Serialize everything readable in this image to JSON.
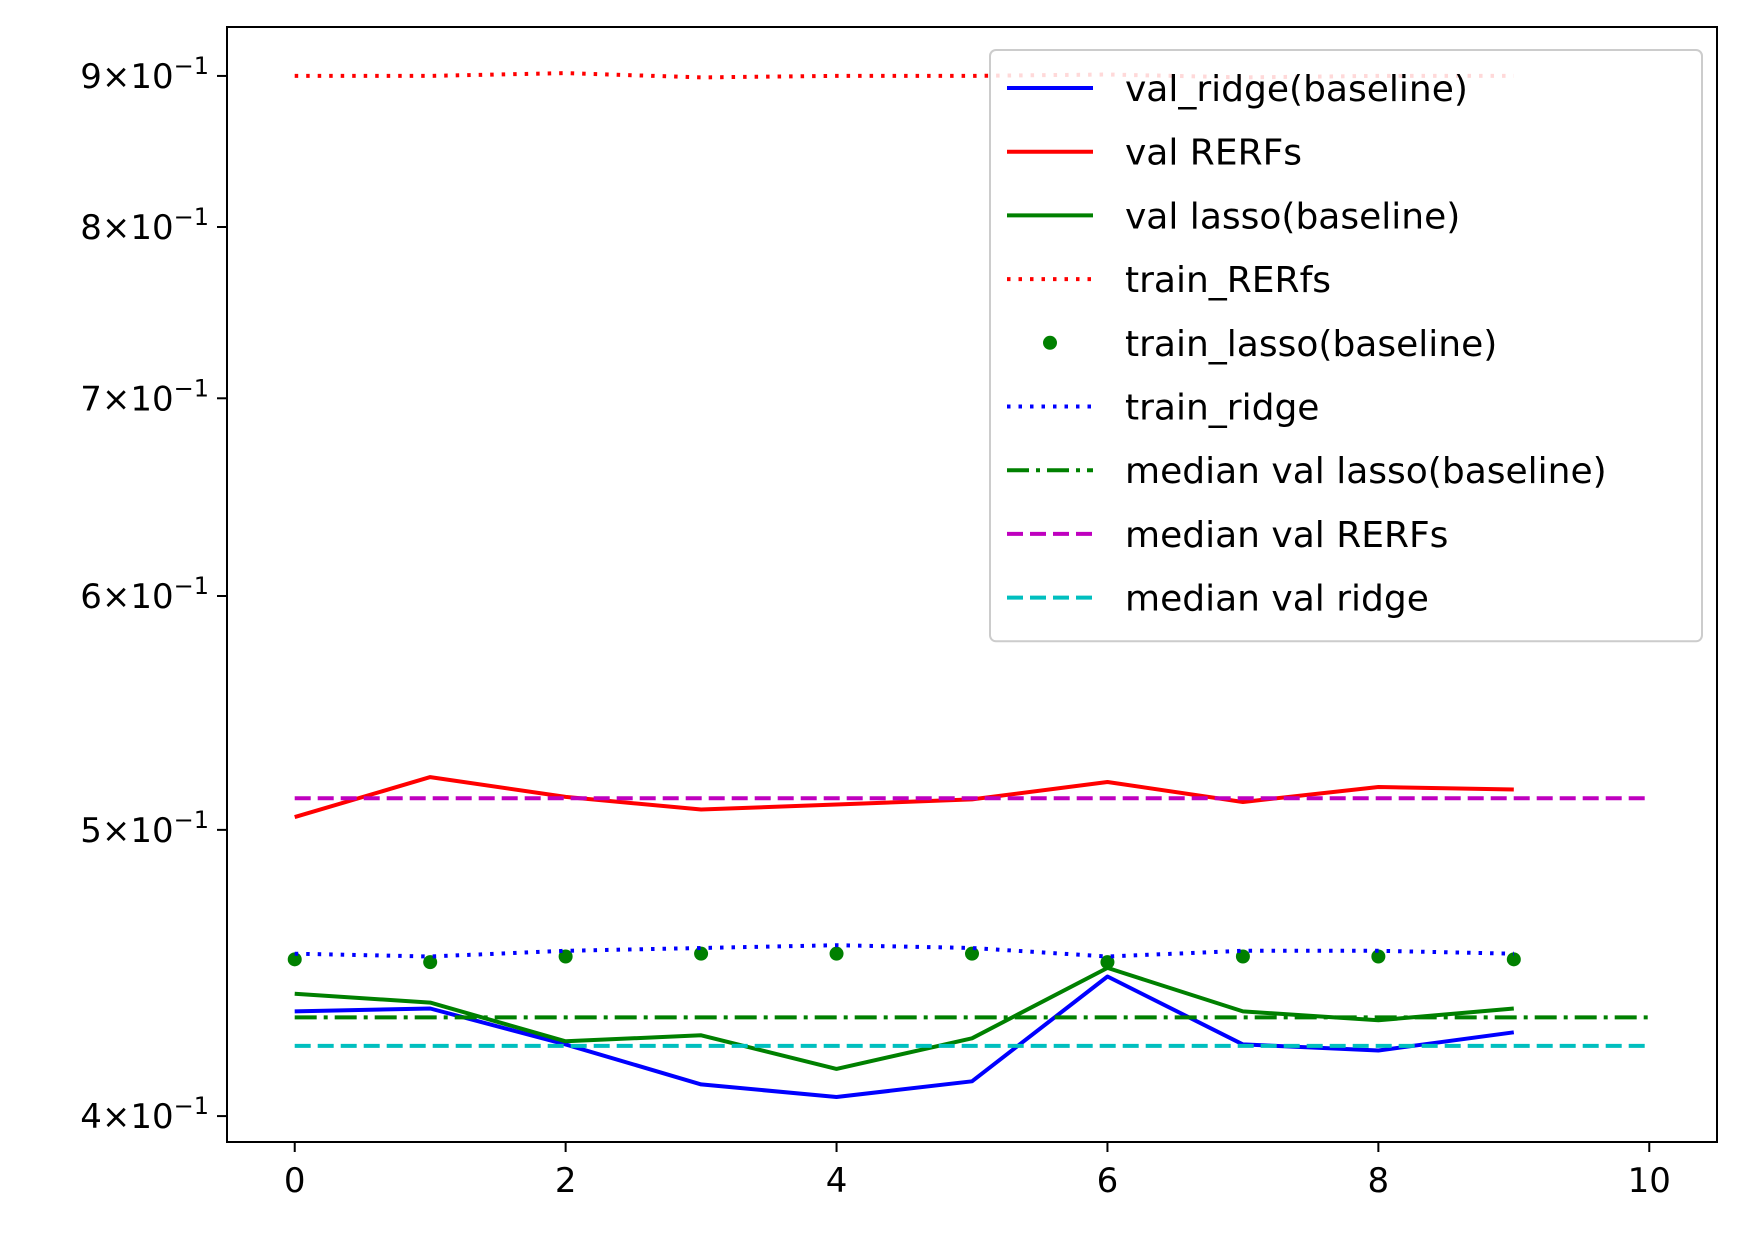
{
  "chart_data": {
    "type": "line",
    "title": "",
    "xlabel": "",
    "ylabel": "",
    "xlim": [
      -0.5,
      10.5
    ],
    "ylim": [
      0.392,
      0.935
    ],
    "yscale": "log",
    "grid": false,
    "legend_position": "top-right",
    "x_ticks": [
      {
        "value": 0,
        "label": "0"
      },
      {
        "value": 2,
        "label": "2"
      },
      {
        "value": 4,
        "label": "4"
      },
      {
        "value": 6,
        "label": "6"
      },
      {
        "value": 8,
        "label": "8"
      },
      {
        "value": 10,
        "label": "10"
      }
    ],
    "y_ticks": [
      {
        "value": 0.4,
        "mantissa": "4",
        "base": "10",
        "exponent": "−1"
      },
      {
        "value": 0.5,
        "mantissa": "5",
        "base": "10",
        "exponent": "−1"
      },
      {
        "value": 0.6,
        "mantissa": "6",
        "base": "10",
        "exponent": "−1"
      },
      {
        "value": 0.7,
        "mantissa": "7",
        "base": "10",
        "exponent": "−1"
      },
      {
        "value": 0.8,
        "mantissa": "8",
        "base": "10",
        "exponent": "−1"
      },
      {
        "value": 0.9,
        "mantissa": "9",
        "base": "10",
        "exponent": "−1"
      }
    ],
    "times_symbol": "×",
    "series": [
      {
        "name": "val_ridge(baseline)",
        "color": "#0000ff",
        "style": "solid",
        "x": [
          0,
          1,
          2,
          3,
          4,
          5,
          6,
          7,
          8,
          9
        ],
        "y": [
          0.434,
          0.435,
          0.423,
          0.41,
          0.406,
          0.411,
          0.446,
          0.423,
          0.421,
          0.427
        ]
      },
      {
        "name": "val RERFs",
        "color": "#ff0000",
        "style": "solid",
        "x": [
          0,
          1,
          2,
          3,
          4,
          5,
          6,
          7,
          8,
          9
        ],
        "y": [
          0.505,
          0.521,
          0.513,
          0.508,
          0.51,
          0.512,
          0.519,
          0.511,
          0.517,
          0.516
        ]
      },
      {
        "name": "val lasso(baseline)",
        "color": "#008000",
        "style": "solid",
        "x": [
          0,
          1,
          2,
          3,
          4,
          5,
          6,
          7,
          8,
          9
        ],
        "y": [
          0.44,
          0.437,
          0.424,
          0.426,
          0.415,
          0.425,
          0.449,
          0.434,
          0.431,
          0.435
        ]
      },
      {
        "name": "train_RERfs",
        "color": "#ff0000",
        "style": "dotted",
        "x": [
          0,
          1,
          2,
          3,
          4,
          5,
          6,
          7,
          8,
          9
        ],
        "y": [
          0.9,
          0.9,
          0.902,
          0.899,
          0.9,
          0.9,
          0.901,
          0.899,
          0.9,
          0.9
        ]
      },
      {
        "name": "train_lasso(baseline)",
        "color": "#008000",
        "style": "markers",
        "x": [
          0,
          1,
          2,
          3,
          4,
          5,
          6,
          7,
          8,
          9
        ],
        "y": [
          0.452,
          0.451,
          0.453,
          0.454,
          0.454,
          0.454,
          0.451,
          0.453,
          0.453,
          0.452
        ]
      },
      {
        "name": "train_ridge",
        "color": "#0000ff",
        "style": "dotted",
        "x": [
          0,
          1,
          2,
          3,
          4,
          5,
          6,
          7,
          8,
          9
        ],
        "y": [
          0.454,
          0.453,
          0.455,
          0.456,
          0.457,
          0.456,
          0.453,
          0.455,
          0.455,
          0.454
        ]
      },
      {
        "name": "median val lasso(baseline)",
        "color": "#008000",
        "style": "dashdot",
        "x": [
          0,
          10
        ],
        "y": [
          0.432,
          0.432
        ]
      },
      {
        "name": "median val RERFs",
        "color": "#bf00bf",
        "style": "dashed",
        "x": [
          0,
          10
        ],
        "y": [
          0.5125,
          0.5125
        ]
      },
      {
        "name": "median val ridge",
        "color": "#00bfbf",
        "style": "dashed",
        "x": [
          0,
          10
        ],
        "y": [
          0.4225,
          0.4225
        ]
      }
    ]
  }
}
